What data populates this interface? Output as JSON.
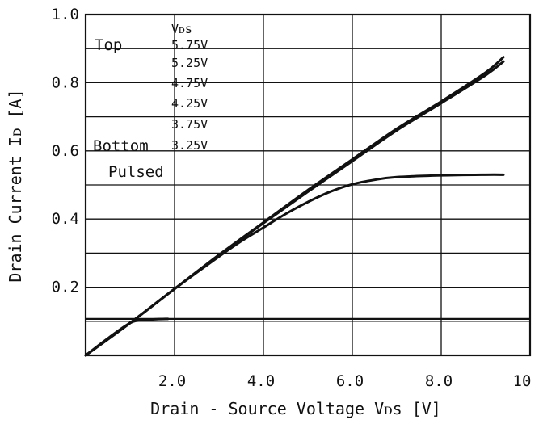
{
  "chart_data": {
    "type": "line",
    "xlabel": "Drain - Source Voltage  Vᴅѕ [V]",
    "ylabel": "Drain Current  Iᴅ [A]",
    "xlim": [
      0,
      10
    ],
    "ylim": [
      0,
      1.0
    ],
    "x_tick_labels": [
      "2.0",
      "4.0",
      "6.0",
      "8.0",
      "10"
    ],
    "x_tick_values": [
      2,
      4,
      6,
      8,
      10
    ],
    "y_tick_labels": [
      "0.2",
      "0.4",
      "0.6",
      "0.8",
      "1.0"
    ],
    "y_tick_values": [
      0.2,
      0.4,
      0.6,
      0.8,
      1.0
    ],
    "x_grid": [
      2,
      4,
      6,
      8
    ],
    "y_grid": [
      0.1,
      0.2,
      0.3,
      0.4,
      0.5,
      0.6,
      0.7,
      0.8,
      0.9
    ],
    "grid": true,
    "legend": {
      "header": "Vᴅѕ",
      "top_label": "Top",
      "bottom_label": "Bottom",
      "pulsed_label": "Pulsed",
      "entries": [
        "5.75V",
        "5.25V",
        "4.75V",
        "4.25V",
        "3.75V",
        "3.25V"
      ]
    },
    "series": [
      {
        "x": [
          0,
          1,
          2,
          3,
          4,
          5,
          6,
          7,
          8,
          9,
          9.4
        ],
        "y": [
          0,
          0.095,
          0.195,
          0.295,
          0.39,
          0.485,
          0.575,
          0.665,
          0.745,
          0.83,
          0.875
        ]
      },
      {
        "x": [
          0,
          1,
          2,
          3,
          4,
          5,
          6,
          7,
          8,
          9,
          9.4
        ],
        "y": [
          0,
          0.095,
          0.195,
          0.294,
          0.388,
          0.48,
          0.57,
          0.66,
          0.74,
          0.822,
          0.862
        ]
      },
      {
        "x": [
          0,
          1,
          2,
          3,
          3.5,
          4,
          4.5,
          5,
          5.5,
          6,
          6.5,
          7,
          8,
          9,
          9.4
        ],
        "y": [
          0,
          0.095,
          0.195,
          0.29,
          0.335,
          0.375,
          0.415,
          0.45,
          0.48,
          0.502,
          0.515,
          0.523,
          0.528,
          0.53,
          0.53
        ]
      },
      {
        "x": [
          0,
          0.5,
          1.0,
          1.3,
          1.6,
          1.85
        ],
        "y": [
          0,
          0.05,
          0.095,
          0.103,
          0.106,
          0.107
        ]
      }
    ],
    "horizontal_line_y": 0.107
  }
}
